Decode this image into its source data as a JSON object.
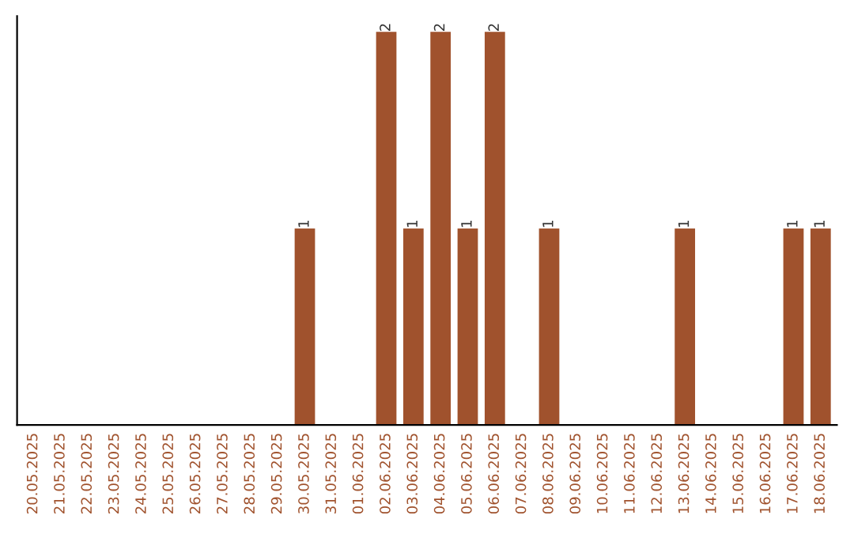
{
  "chart_data": {
    "type": "bar",
    "categories": [
      "20.05.2025",
      "21.05.2025",
      "22.05.2025",
      "23.05.2025",
      "24.05.2025",
      "25.05.2025",
      "26.05.2025",
      "27.05.2025",
      "28.05.2025",
      "29.05.2025",
      "30.05.2025",
      "31.05.2025",
      "01.06.2025",
      "02.06.2025",
      "03.06.2025",
      "04.06.2025",
      "05.06.2025",
      "06.06.2025",
      "07.06.2025",
      "08.06.2025",
      "09.06.2025",
      "10.06.2025",
      "11.06.2025",
      "12.06.2025",
      "13.06.2025",
      "14.06.2025",
      "15.06.2025",
      "16.06.2025",
      "17.06.2025",
      "18.06.2025"
    ],
    "values": [
      0,
      0,
      0,
      0,
      0,
      0,
      0,
      0,
      0,
      0,
      1,
      0,
      0,
      2,
      1,
      2,
      1,
      2,
      0,
      1,
      0,
      0,
      0,
      0,
      1,
      0,
      0,
      0,
      1,
      1
    ],
    "value_labels": [
      null,
      null,
      null,
      null,
      null,
      null,
      null,
      null,
      null,
      null,
      "1",
      null,
      null,
      "2",
      "1",
      "2",
      "1",
      "2",
      null,
      "1",
      null,
      null,
      null,
      null,
      "1",
      null,
      null,
      null,
      "1",
      "1"
    ],
    "color": "#a0522d",
    "tick_labels": "x",
    "grid": false,
    "legend": false
  }
}
